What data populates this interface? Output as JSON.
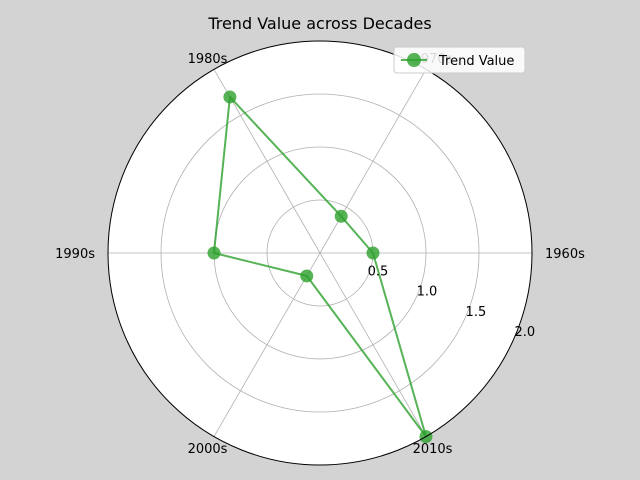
{
  "chart_data": {
    "type": "radar",
    "title": "Trend Value across Decades",
    "categories": [
      "1960s",
      "1970s",
      "1980s",
      "1990s",
      "2000s",
      "2010s"
    ],
    "series": [
      {
        "name": "Trend Value",
        "values": [
          0.5,
          0.4,
          1.7,
          1.0,
          0.25,
          2.0
        ],
        "color": "#2ca02c"
      }
    ],
    "rlim": [
      0,
      2.0
    ],
    "r_ticks": [
      "0.5",
      "1.0",
      "1.5",
      "2.0"
    ],
    "r_tick_values": [
      0.5,
      1.0,
      1.5,
      2.0
    ],
    "grid": true,
    "legend_position": "top-right"
  }
}
